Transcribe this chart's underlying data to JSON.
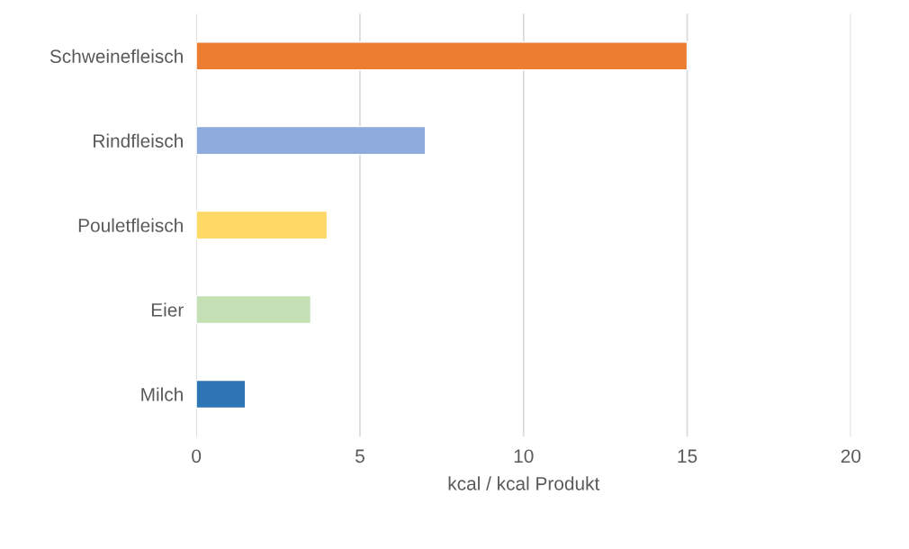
{
  "chart_data": {
    "type": "bar",
    "orientation": "horizontal",
    "xlabel": "kcal / kcal Produkt",
    "categories": [
      "Schweinefleisch",
      "Rindfleisch",
      "Pouletfleisch",
      "Eier",
      "Milch"
    ],
    "values": [
      15,
      7,
      4,
      3.5,
      1.5
    ],
    "colors": [
      "#ed7d31",
      "#8faadc",
      "#ffd966",
      "#c5e0b4",
      "#2e75b6"
    ],
    "xlim": [
      0,
      20
    ],
    "xticks": [
      0,
      5,
      10,
      15,
      20
    ],
    "grid": "x"
  }
}
